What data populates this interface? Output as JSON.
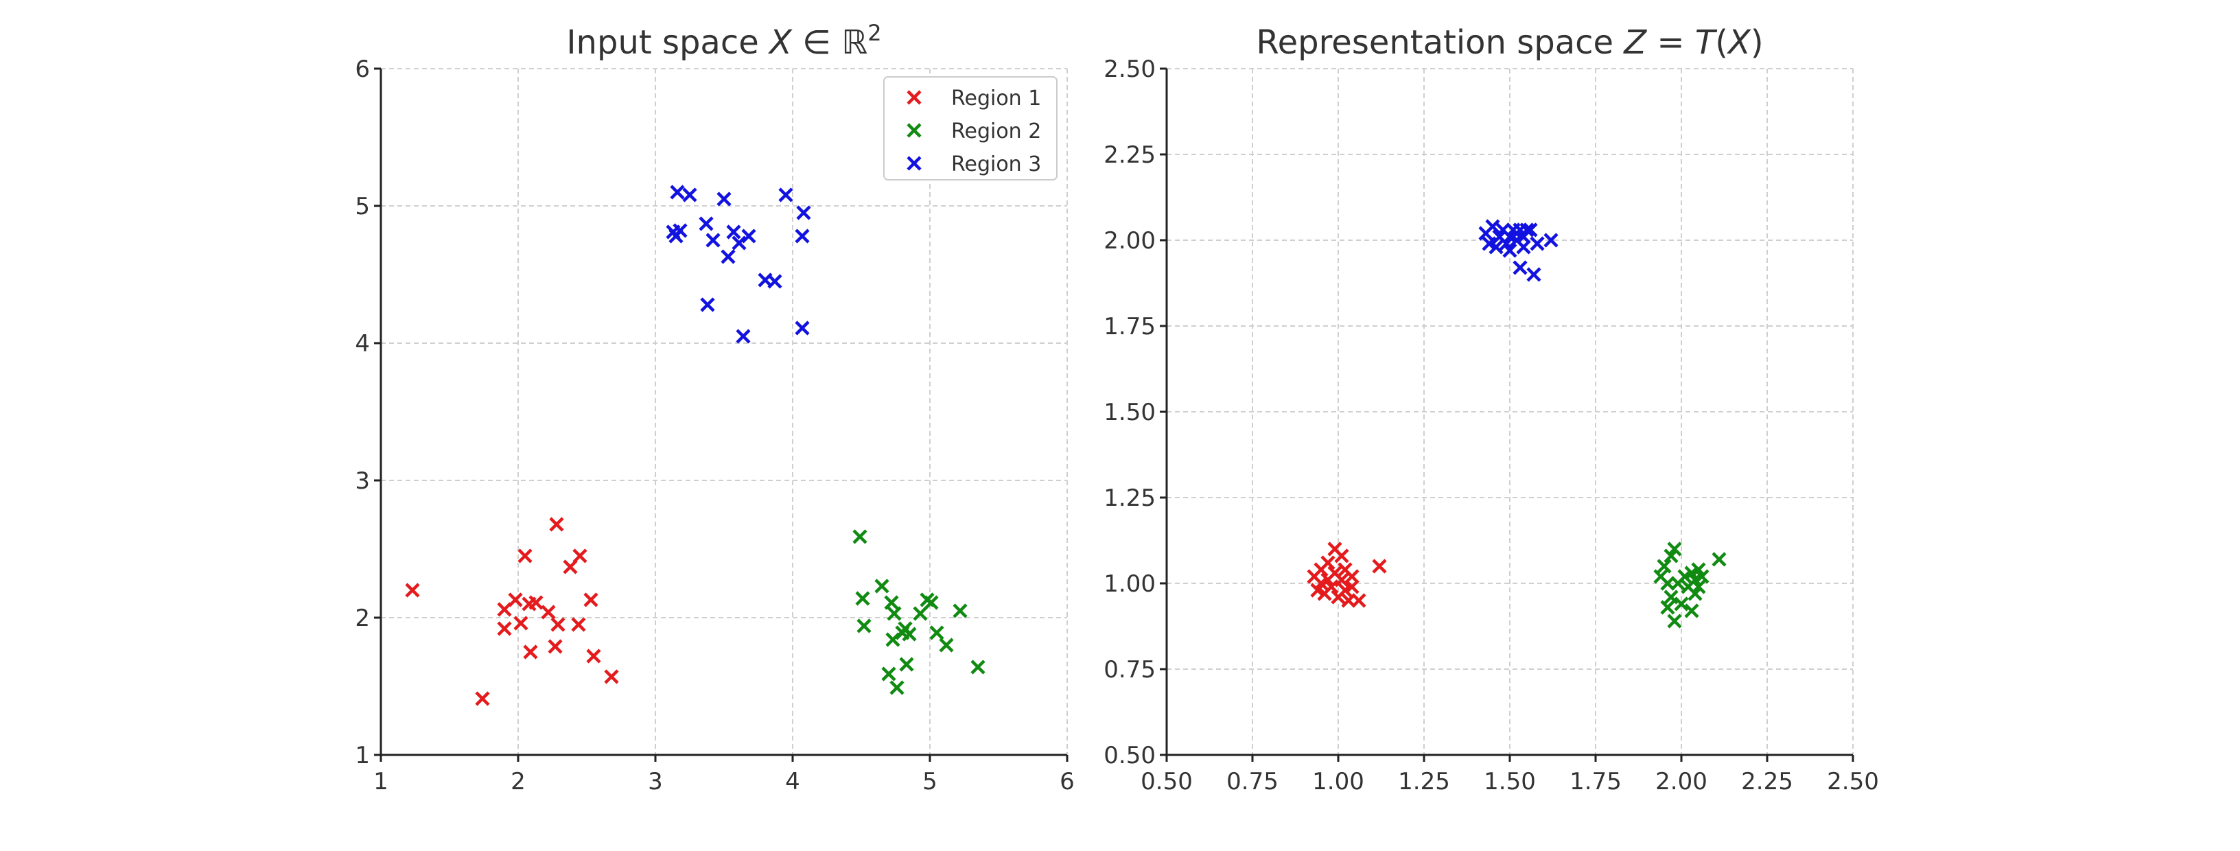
{
  "chart_data": [
    {
      "type": "scatter",
      "title": "Input space X ∈ ℝ²",
      "title_parts": [
        "Input space ",
        "X",
        " ∈ ℝ",
        "2"
      ],
      "xlim": [
        1,
        6
      ],
      "ylim": [
        1,
        6
      ],
      "xticks": [
        "1",
        "2",
        "3",
        "4",
        "5",
        "6"
      ],
      "yticks": [
        "1",
        "2",
        "3",
        "4",
        "5",
        "6"
      ],
      "grid": true,
      "legend": "top-right",
      "marker": "x",
      "series": [
        {
          "name": "Region 1",
          "color": "#e41a1c",
          "points": [
            [
              1.23,
              2.2
            ],
            [
              1.74,
              1.41
            ],
            [
              1.9,
              2.06
            ],
            [
              1.9,
              1.92
            ],
            [
              1.98,
              2.13
            ],
            [
              2.02,
              1.96
            ],
            [
              2.05,
              2.45
            ],
            [
              2.08,
              2.1
            ],
            [
              2.09,
              1.75
            ],
            [
              2.13,
              2.11
            ],
            [
              2.22,
              2.04
            ],
            [
              2.27,
              1.79
            ],
            [
              2.28,
              2.68
            ],
            [
              2.29,
              1.95
            ],
            [
              2.38,
              2.37
            ],
            [
              2.44,
              1.95
            ],
            [
              2.45,
              2.45
            ],
            [
              2.53,
              2.13
            ],
            [
              2.55,
              1.72
            ],
            [
              2.68,
              1.57
            ]
          ]
        },
        {
          "name": "Region 2",
          "color": "#118a11",
          "points": [
            [
              4.49,
              2.59
            ],
            [
              4.51,
              2.14
            ],
            [
              4.52,
              1.94
            ],
            [
              4.65,
              2.23
            ],
            [
              4.7,
              1.59
            ],
            [
              4.72,
              2.11
            ],
            [
              4.73,
              1.84
            ],
            [
              4.74,
              2.03
            ],
            [
              4.76,
              1.49
            ],
            [
              4.8,
              1.89
            ],
            [
              4.82,
              1.92
            ],
            [
              4.83,
              1.66
            ],
            [
              4.85,
              1.88
            ],
            [
              4.93,
              2.03
            ],
            [
              4.98,
              2.13
            ],
            [
              5.01,
              2.11
            ],
            [
              5.05,
              1.89
            ],
            [
              5.12,
              1.8
            ],
            [
              5.22,
              2.05
            ],
            [
              5.35,
              1.64
            ]
          ]
        },
        {
          "name": "Region 3",
          "color": "#1212e0",
          "points": [
            [
              3.13,
              4.81
            ],
            [
              3.15,
              4.78
            ],
            [
              3.16,
              5.1
            ],
            [
              3.18,
              4.82
            ],
            [
              3.25,
              5.08
            ],
            [
              3.37,
              4.87
            ],
            [
              3.38,
              4.28
            ],
            [
              3.42,
              4.75
            ],
            [
              3.5,
              5.05
            ],
            [
              3.53,
              4.63
            ],
            [
              3.57,
              4.81
            ],
            [
              3.61,
              4.73
            ],
            [
              3.64,
              4.05
            ],
            [
              3.68,
              4.78
            ],
            [
              3.8,
              4.46
            ],
            [
              3.87,
              4.45
            ],
            [
              3.95,
              5.08
            ],
            [
              4.07,
              4.78
            ],
            [
              4.07,
              4.11
            ],
            [
              4.08,
              4.95
            ]
          ]
        }
      ]
    },
    {
      "type": "scatter",
      "title": "Representation space Z = T(X)",
      "title_parts": [
        "Representation space ",
        "Z",
        " = ",
        "T",
        "(",
        "X",
        ")"
      ],
      "xlim": [
        0.5,
        2.5
      ],
      "ylim": [
        0.5,
        2.5
      ],
      "xticks": [
        "0.50",
        "0.75",
        "1.00",
        "1.25",
        "1.50",
        "1.75",
        "2.00",
        "2.25",
        "2.50"
      ],
      "yticks": [
        "0.50",
        "0.75",
        "1.00",
        "1.25",
        "1.50",
        "1.75",
        "2.00",
        "2.25",
        "2.50"
      ],
      "grid": true,
      "marker": "x",
      "series": [
        {
          "color": "#e41a1c",
          "points": [
            [
              0.93,
              1.02
            ],
            [
              0.94,
              0.98
            ],
            [
              0.95,
              1.04
            ],
            [
              0.95,
              1.0
            ],
            [
              0.96,
              0.97
            ],
            [
              0.97,
              1.06
            ],
            [
              0.97,
              1.01
            ],
            [
              0.98,
              0.99
            ],
            [
              0.99,
              1.1
            ],
            [
              0.99,
              1.03
            ],
            [
              1.0,
              0.96
            ],
            [
              1.01,
              1.08
            ],
            [
              1.01,
              1.01
            ],
            [
              1.02,
              1.04
            ],
            [
              1.02,
              0.98
            ],
            [
              1.03,
              0.95
            ],
            [
              1.04,
              1.02
            ],
            [
              1.04,
              0.99
            ],
            [
              1.06,
              0.95
            ],
            [
              1.12,
              1.05
            ]
          ]
        },
        {
          "color": "#118a11",
          "points": [
            [
              1.94,
              1.02
            ],
            [
              1.95,
              1.05
            ],
            [
              1.96,
              0.93
            ],
            [
              1.96,
              1.0
            ],
            [
              1.97,
              1.08
            ],
            [
              1.97,
              0.96
            ],
            [
              1.98,
              0.89
            ],
            [
              1.98,
              1.1
            ],
            [
              1.99,
              1.0
            ],
            [
              2.0,
              0.94
            ],
            [
              2.01,
              1.02
            ],
            [
              2.02,
              0.99
            ],
            [
              2.03,
              1.03
            ],
            [
              2.03,
              0.92
            ],
            [
              2.04,
              1.01
            ],
            [
              2.04,
              0.97
            ],
            [
              2.05,
              1.04
            ],
            [
              2.05,
              0.99
            ],
            [
              2.06,
              1.02
            ],
            [
              2.11,
              1.07
            ]
          ]
        },
        {
          "color": "#1212e0",
          "points": [
            [
              1.43,
              2.02
            ],
            [
              1.44,
              1.99
            ],
            [
              1.45,
              2.04
            ],
            [
              1.46,
              1.98
            ],
            [
              1.47,
              2.01
            ],
            [
              1.48,
              2.03
            ],
            [
              1.49,
              1.99
            ],
            [
              1.5,
              2.01
            ],
            [
              1.5,
              1.97
            ],
            [
              1.51,
              2.03
            ],
            [
              1.52,
              2.0
            ],
            [
              1.53,
              1.92
            ],
            [
              1.53,
              2.03
            ],
            [
              1.54,
              1.98
            ],
            [
              1.54,
              2.01
            ],
            [
              1.55,
              2.03
            ],
            [
              1.56,
              2.03
            ],
            [
              1.57,
              1.9
            ],
            [
              1.58,
              1.99
            ],
            [
              1.62,
              2.0
            ]
          ]
        }
      ]
    }
  ]
}
